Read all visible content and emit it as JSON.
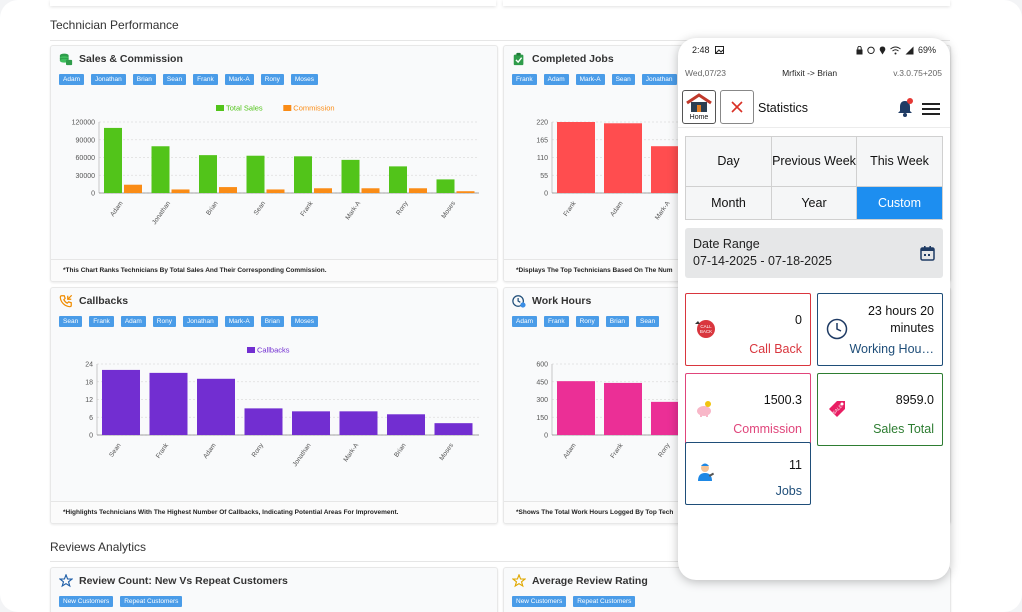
{
  "sections": {
    "technician_performance": "Technician Performance",
    "reviews_analytics": "Reviews Analytics"
  },
  "cards": {
    "sales": {
      "title": "Sales & Commission",
      "chips": [
        "Adam",
        "Jonathan",
        "Brian",
        "Sean",
        "Frank",
        "Mark-A",
        "Rony",
        "Moses"
      ],
      "footer": "*This Chart Ranks Technicians By Total Sales And Their Corresponding Commission."
    },
    "completed": {
      "title": "Completed Jobs",
      "chips": [
        "Frank",
        "Adam",
        "Mark-A",
        "Sean",
        "Jonathan"
      ],
      "footer": "*Displays The Top Technicians Based On The Num"
    },
    "callbacks": {
      "title": "Callbacks",
      "chips": [
        "Sean",
        "Frank",
        "Adam",
        "Rony",
        "Jonathan",
        "Mark-A",
        "Brian",
        "Moses"
      ],
      "footer": "*Highlights Technicians With The Highest Number Of Callbacks, Indicating Potential Areas For Improvement."
    },
    "work_hours": {
      "title": "Work Hours",
      "chips": [
        "Adam",
        "Frank",
        "Rony",
        "Brian",
        "Sean"
      ],
      "footer": "*Shows The Total Work Hours Logged By Top Tech"
    },
    "review_count": {
      "title": "Review Count: New Vs Repeat Customers",
      "chips": [
        "New Customers",
        "Repeat Customers"
      ]
    },
    "avg_rating": {
      "title": "Average Review Rating",
      "chips": [
        "New Customers",
        "Repeat Customers"
      ]
    }
  },
  "chart_data": [
    {
      "id": "sales",
      "type": "bar",
      "categories": [
        "Adam",
        "Jonathan",
        "Brian",
        "Sean",
        "Frank",
        "Mark-A",
        "Rony",
        "Moses"
      ],
      "series": [
        {
          "name": "Total Sales",
          "color": "#52c41a",
          "values": [
            110000,
            79000,
            64000,
            63000,
            62000,
            56000,
            45000,
            23000
          ]
        },
        {
          "name": "Commission",
          "color": "#fa8c16",
          "values": [
            14000,
            6000,
            10000,
            6000,
            8000,
            8000,
            8000,
            3000
          ]
        }
      ],
      "yticks": [
        0,
        30000,
        60000,
        90000,
        120000
      ],
      "ylim": [
        0,
        120000
      ],
      "legend_position": "top-center"
    },
    {
      "id": "completed",
      "type": "bar",
      "categories": [
        "Frank",
        "Adam",
        "Mark-A"
      ],
      "series": [
        {
          "name": "Completed Jobs",
          "color": "#ff4d4f",
          "values": [
            220,
            216,
            145
          ]
        }
      ],
      "yticks": [
        0,
        55,
        110,
        165,
        220
      ],
      "ylim": [
        0,
        220
      ]
    },
    {
      "id": "callbacks",
      "type": "bar",
      "categories": [
        "Sean",
        "Frank",
        "Adam",
        "Rony",
        "Jonathan",
        "Mark-A",
        "Brian",
        "Moses"
      ],
      "series": [
        {
          "name": "Callbacks",
          "color": "#722ed1",
          "values": [
            22,
            21,
            19,
            9,
            8,
            8,
            7,
            4
          ]
        }
      ],
      "yticks": [
        0,
        6,
        12,
        18,
        24
      ],
      "ylim": [
        0,
        24
      ],
      "legend_position": "top-center"
    },
    {
      "id": "work_hours",
      "type": "bar",
      "categories": [
        "Adam",
        "Frank",
        "Rony"
      ],
      "series": [
        {
          "name": "Work Hours",
          "color": "#eb2f96",
          "values": [
            455,
            440,
            280
          ]
        }
      ],
      "yticks": [
        0,
        150,
        300,
        450,
        600
      ],
      "ylim": [
        0,
        600
      ]
    }
  ],
  "phone": {
    "status_time": "2:48",
    "battery": "69%",
    "date": "Wed,07/23",
    "company_user": "Mrfixit -> Brian",
    "version": "v.3.0.75+205",
    "home_label": "Home",
    "title": "Statistics",
    "periods": [
      "Day",
      "Previous Week",
      "This Week",
      "Month",
      "Year",
      "Custom"
    ],
    "active_period": "Custom",
    "date_range_label": "Date Range",
    "date_range_value": "07-14-2025 - 07-18-2025",
    "stats": [
      {
        "value": "0",
        "label": "Call Back",
        "color": "#d9363e",
        "icon": "callback-icon"
      },
      {
        "value": "23 hours 20 minutes",
        "label": "Working Hou…",
        "color": "#1f4e79",
        "icon": "clock-icon"
      },
      {
        "value": "1500.3",
        "label": "Commission",
        "color": "#e0457b",
        "icon": "piggy-bank-icon"
      },
      {
        "value": "8959.0",
        "label": "Sales Total",
        "color": "#2e7d32",
        "icon": "sale-tag-icon"
      },
      {
        "value": "11",
        "label": "Jobs",
        "color": "#1f4e79",
        "icon": "technician-icon"
      }
    ]
  }
}
